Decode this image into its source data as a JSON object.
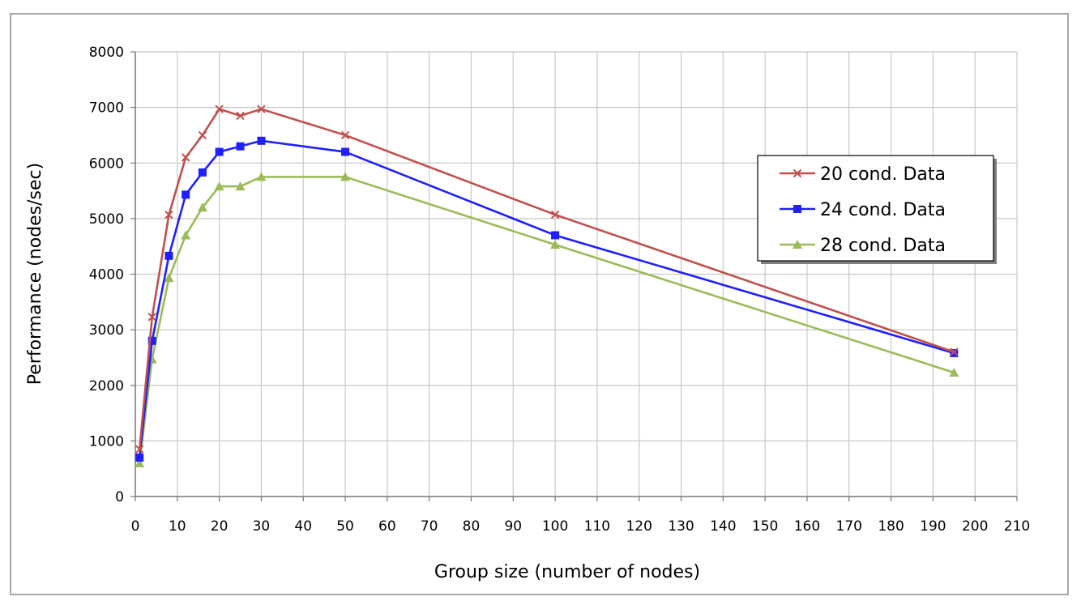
{
  "chart_data": {
    "type": "line",
    "title": "",
    "xlabel": "Group size (number of nodes)",
    "ylabel": "Performance (nodes/sec)",
    "xlim": [
      0,
      210
    ],
    "ylim": [
      0,
      8000
    ],
    "x_ticks": [
      "0",
      "10",
      "20",
      "30",
      "40",
      "50",
      "60",
      "70",
      "80",
      "90",
      "100",
      "110",
      "120",
      "130",
      "140",
      "150",
      "160",
      "170",
      "180",
      "190",
      "200",
      "210"
    ],
    "y_ticks": [
      "0",
      "1000",
      "2000",
      "3000",
      "4000",
      "5000",
      "6000",
      "7000",
      "8000"
    ],
    "grid": true,
    "legend_position": "right",
    "series": [
      {
        "name": "20 cond. Data",
        "color": "#c0504d",
        "marker": "x",
        "x": [
          1,
          4,
          8,
          12,
          16,
          20,
          25,
          30,
          50,
          100,
          195
        ],
        "y": [
          850,
          3230,
          5070,
          6100,
          6500,
          6970,
          6850,
          6970,
          6500,
          5070,
          2600
        ]
      },
      {
        "name": "24 cond. Data",
        "color": "#1f1fff",
        "marker": "square",
        "x": [
          1,
          4,
          8,
          12,
          16,
          20,
          25,
          30,
          50,
          100,
          195
        ],
        "y": [
          700,
          2800,
          4330,
          5430,
          5830,
          6200,
          6300,
          6400,
          6200,
          4700,
          2580
        ]
      },
      {
        "name": "28 cond. Data",
        "color": "#9bbb59",
        "marker": "triangle",
        "x": [
          1,
          4,
          8,
          12,
          16,
          20,
          25,
          30,
          50,
          100,
          195
        ],
        "y": [
          600,
          2470,
          3930,
          4700,
          5200,
          5580,
          5580,
          5750,
          5750,
          4530,
          2230
        ]
      }
    ]
  }
}
